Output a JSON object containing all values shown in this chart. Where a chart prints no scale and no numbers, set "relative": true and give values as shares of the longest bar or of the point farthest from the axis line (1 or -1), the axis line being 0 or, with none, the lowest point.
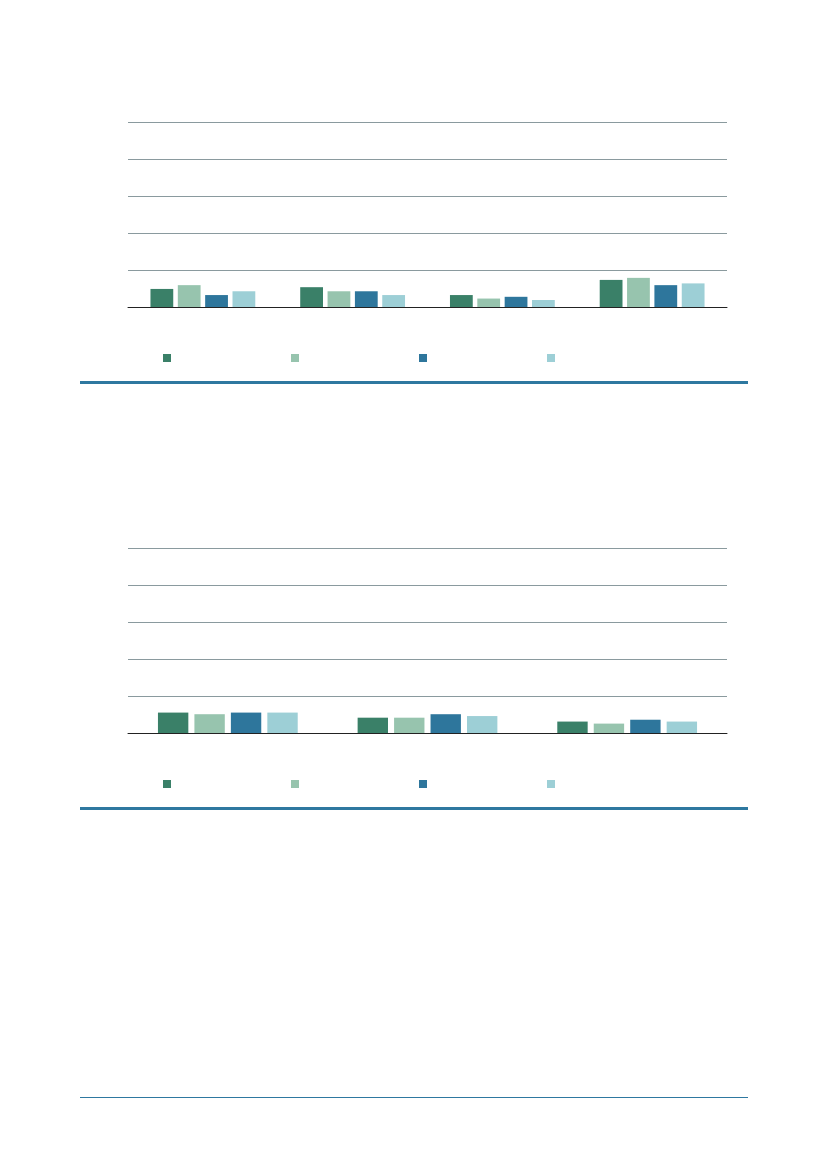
{
  "chart_data": [
    {
      "type": "bar",
      "relative": true,
      "categories": [
        null,
        null,
        null,
        null
      ],
      "series": [
        {
          "color": "#3a8068",
          "values": [
            0.62,
            0.68,
            0.41,
            0.93
          ]
        },
        {
          "color": "#97c4ae",
          "values": [
            0.75,
            0.54,
            0.29,
            1
          ]
        },
        {
          "color": "#2e769c",
          "values": [
            0.41,
            0.54,
            0.35,
            0.75
          ]
        },
        {
          "color": "#9dcfd6",
          "values": [
            0.54,
            0.41,
            0.24,
            0.81
          ]
        }
      ]
    },
    {
      "type": "bar",
      "relative": true,
      "categories": [
        null,
        null,
        null
      ],
      "series": [
        {
          "color": "#3a8068",
          "values": [
            1,
            0.75,
            0.56
          ]
        },
        {
          "color": "#97c4ae",
          "values": [
            0.92,
            0.75,
            0.46
          ]
        },
        {
          "color": "#2e769c",
          "values": [
            1,
            0.92,
            0.65
          ]
        },
        {
          "color": "#9dcfd6",
          "values": [
            1,
            0.83,
            0.56
          ]
        }
      ]
    }
  ]
}
